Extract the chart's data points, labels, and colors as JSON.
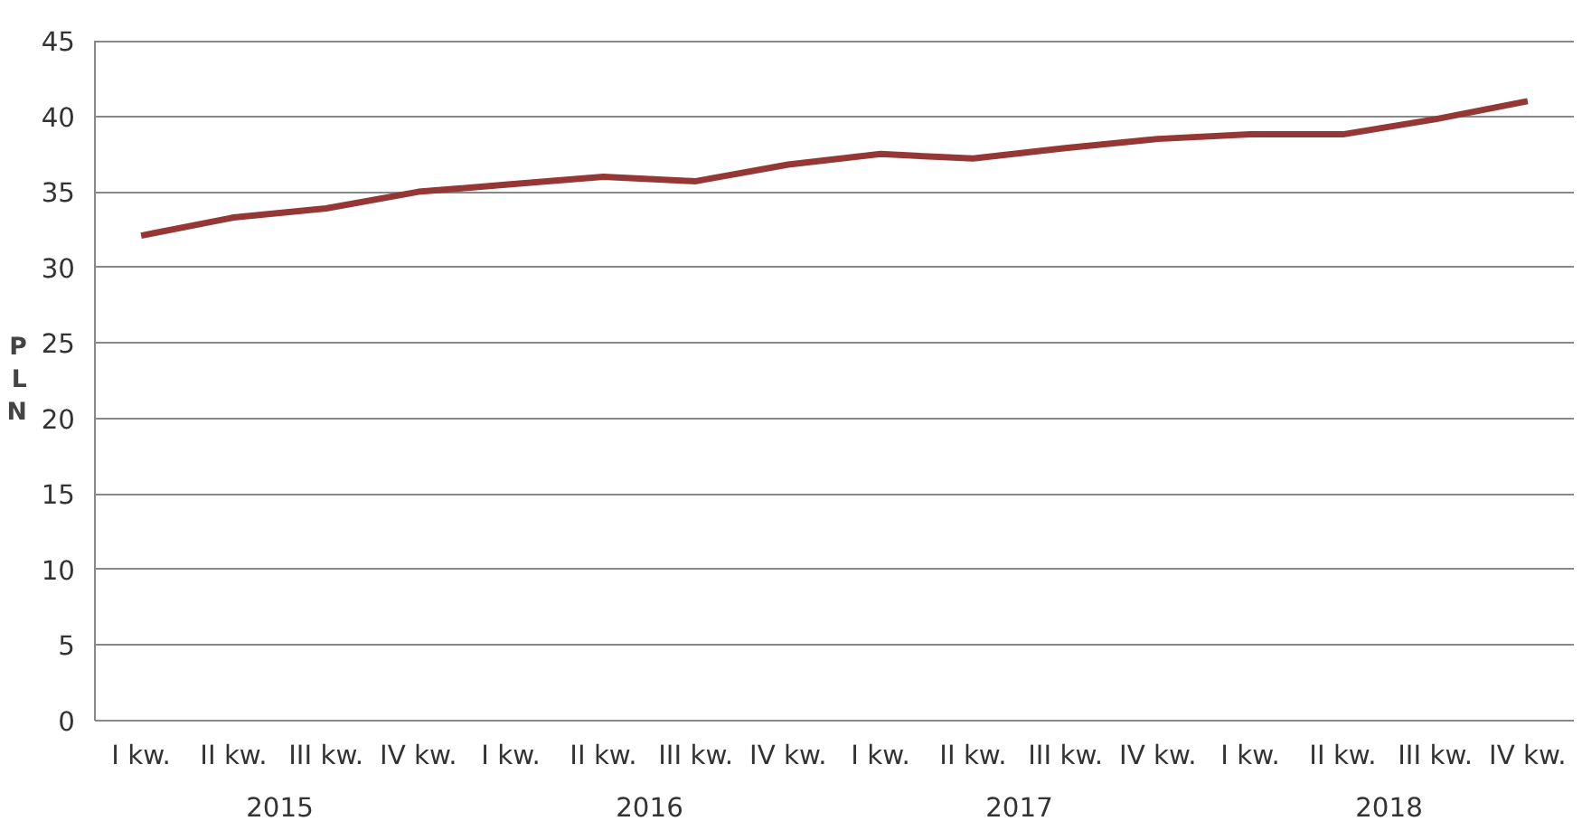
{
  "chart_data": {
    "type": "line",
    "ylabel": "PLN",
    "categories": [
      "I kw.",
      "II kw.",
      "III kw.",
      "IV kw.",
      "I kw.",
      "II kw.",
      "III kw.",
      "IV kw.",
      "I kw.",
      "II kw.",
      "III kw.",
      "IV kw.",
      "I kw.",
      "II kw.",
      "III kw.",
      "IV kw."
    ],
    "series": [
      {
        "color": "#953735",
        "values": [
          32.1,
          33.3,
          33.9,
          35.0,
          35.5,
          36.0,
          35.7,
          36.8,
          37.5,
          37.2,
          37.9,
          38.5,
          38.8,
          38.8,
          39.8,
          41.0
        ]
      }
    ],
    "annotations": [
      "2015",
      "2016",
      "2017",
      "2018"
    ],
    "ylim": [
      0,
      45
    ],
    "yticks": [
      0,
      5,
      10,
      15,
      20,
      25,
      30,
      35,
      40,
      45
    ],
    "grid": "y",
    "marker": "none",
    "line_style": "solid"
  }
}
